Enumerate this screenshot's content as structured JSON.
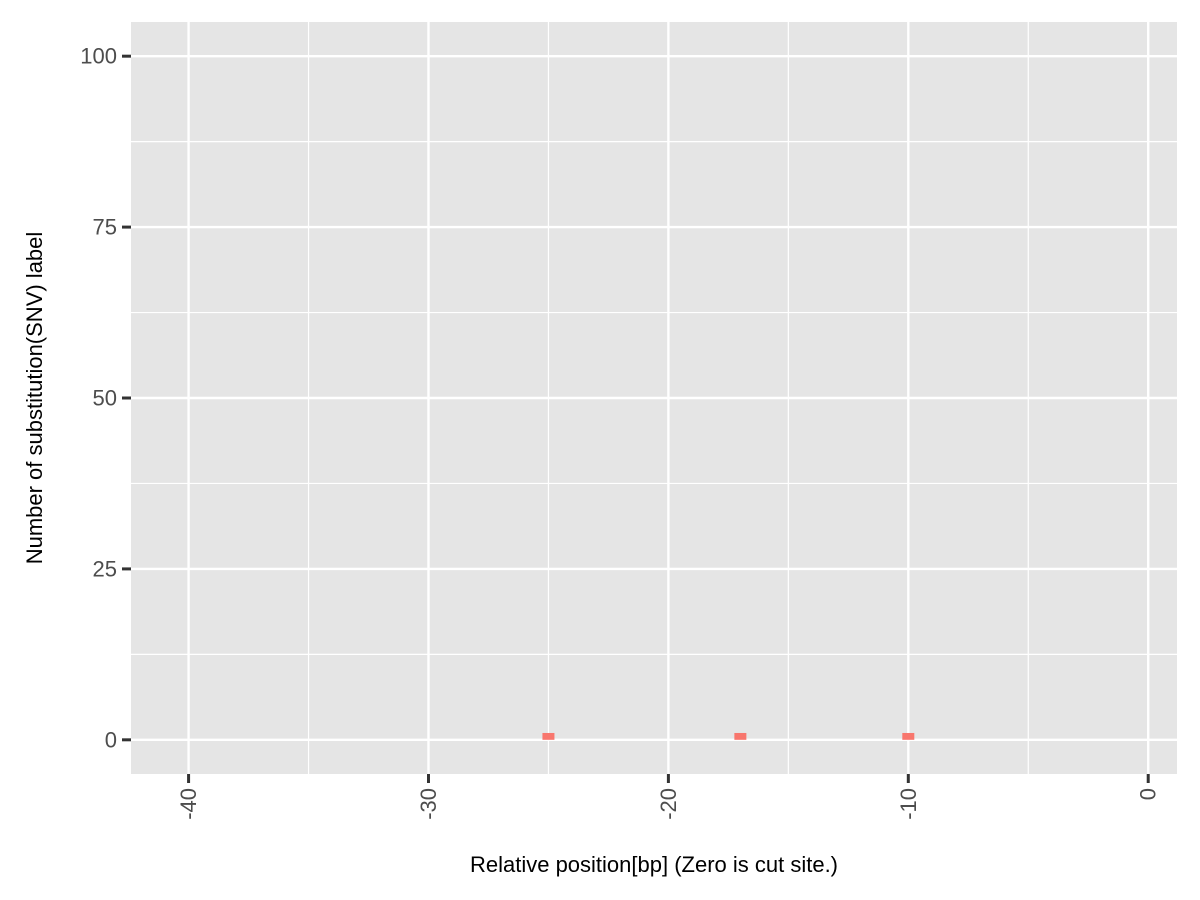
{
  "chart_data": {
    "type": "bar",
    "title": "",
    "xlabel": "Relative position[bp] (Zero is cut site.)",
    "ylabel": "Number of substitution(SNV) label",
    "xlim": [
      -42.4,
      1.2
    ],
    "ylim": [
      -5,
      105
    ],
    "x_ticks": [
      -40,
      -30,
      -20,
      -10,
      0
    ],
    "x_tick_labels": [
      "-40",
      "-30",
      "-20",
      "-10",
      "0"
    ],
    "y_ticks": [
      0,
      25,
      50,
      75,
      100
    ],
    "y_tick_labels": [
      "0",
      "25",
      "50",
      "75",
      "100"
    ],
    "x": [
      -25,
      -17,
      -10
    ],
    "values": [
      1,
      1,
      1
    ],
    "bar_color": "#F8766D",
    "panel_color": "#E5E5E5",
    "grid_color": "#FFFFFF",
    "grid": true,
    "legend": "none"
  }
}
